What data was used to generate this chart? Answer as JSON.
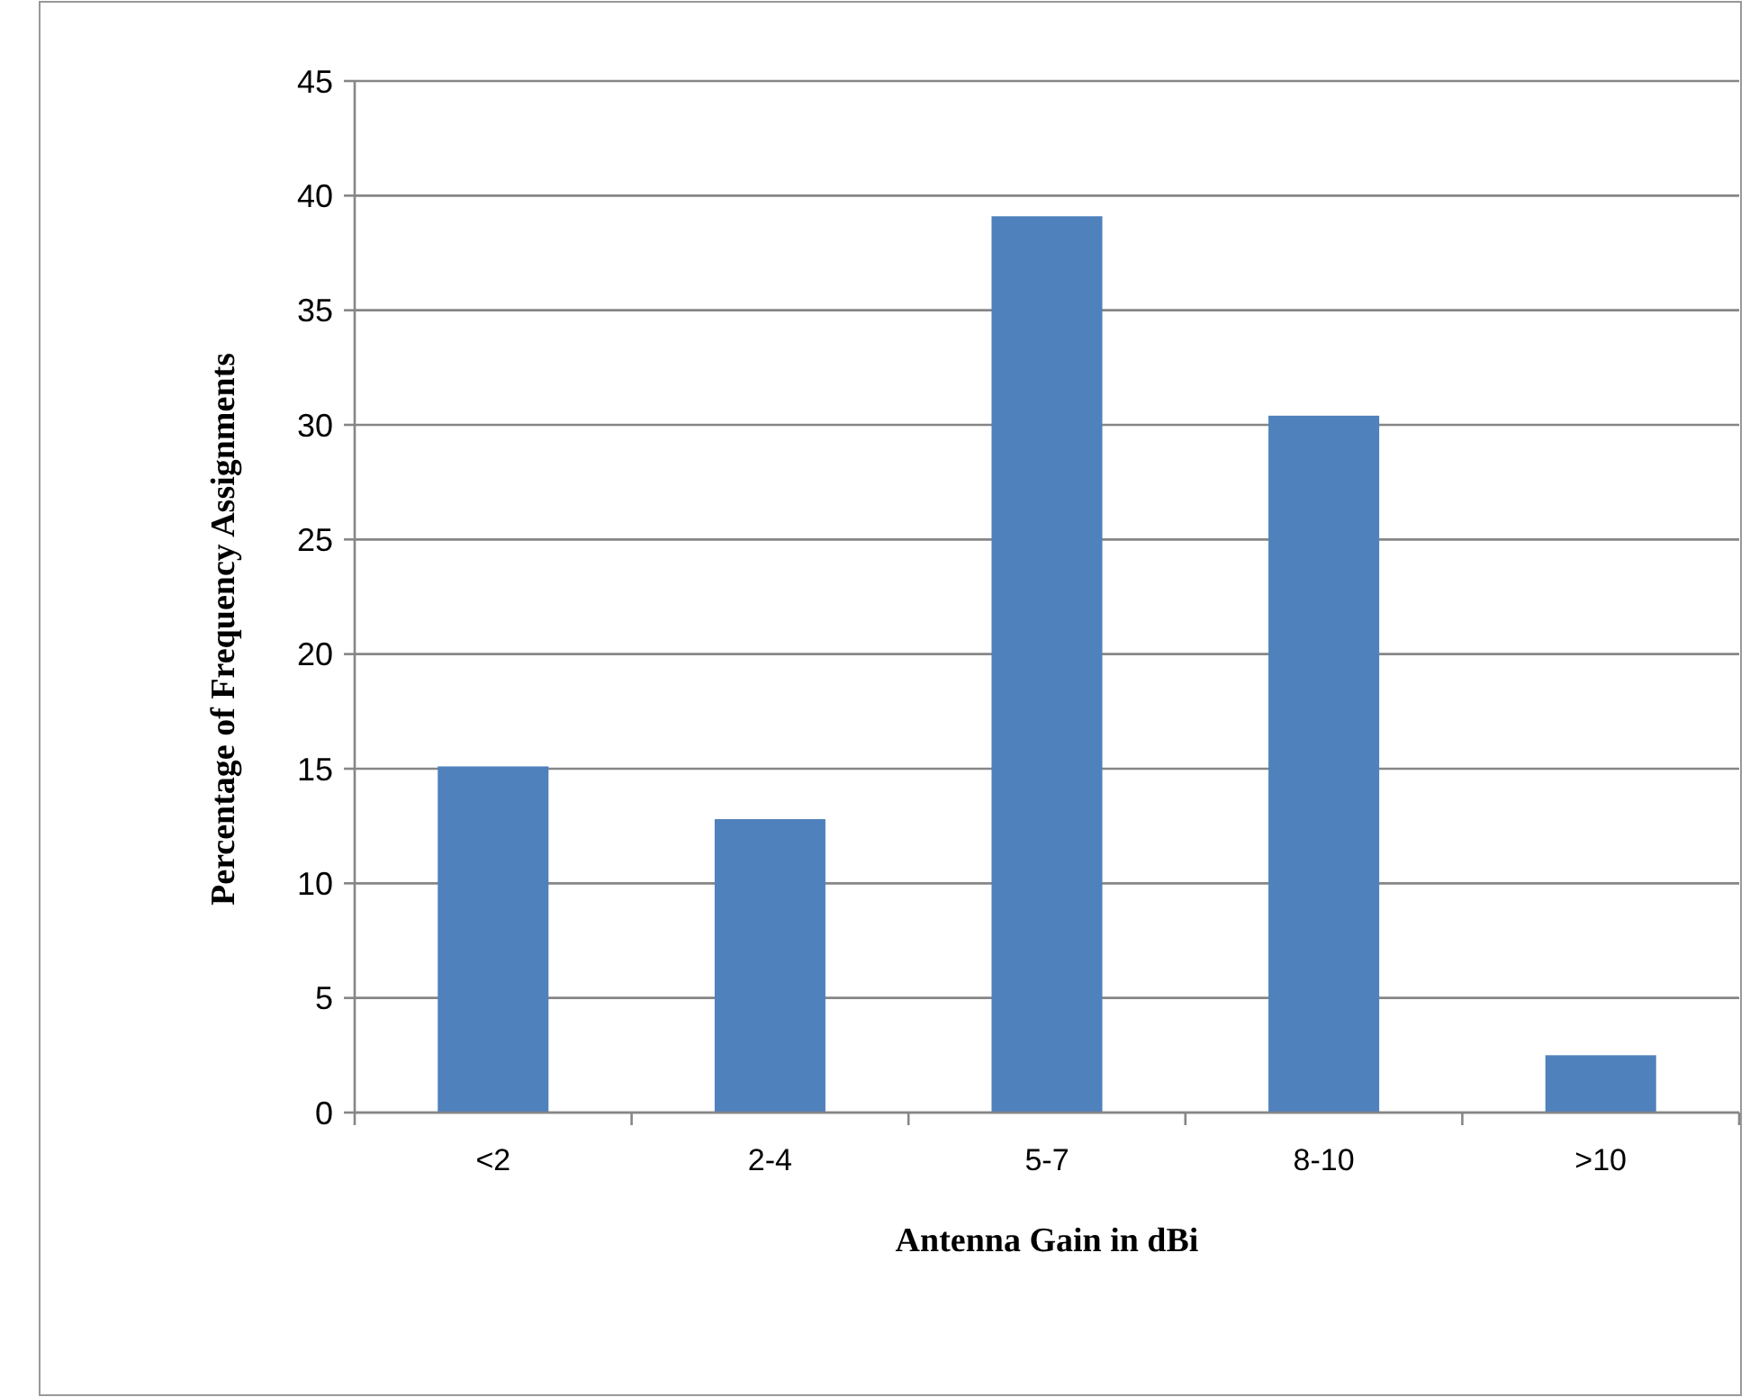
{
  "chart_data": {
    "type": "bar",
    "xlabel": "Antenna Gain in dBi",
    "ylabel": "Percentage of Frequency Assignments",
    "categories": [
      "<2",
      "2-4",
      "5-7",
      "8-10",
      ">10"
    ],
    "values": [
      15.1,
      12.8,
      39.1,
      30.4,
      2.5
    ],
    "color": "#4f81bd",
    "ylim": [
      0,
      45
    ],
    "yticks": [
      0,
      5,
      10,
      15,
      20,
      25,
      30,
      35,
      40,
      45
    ],
    "grid": "y"
  }
}
